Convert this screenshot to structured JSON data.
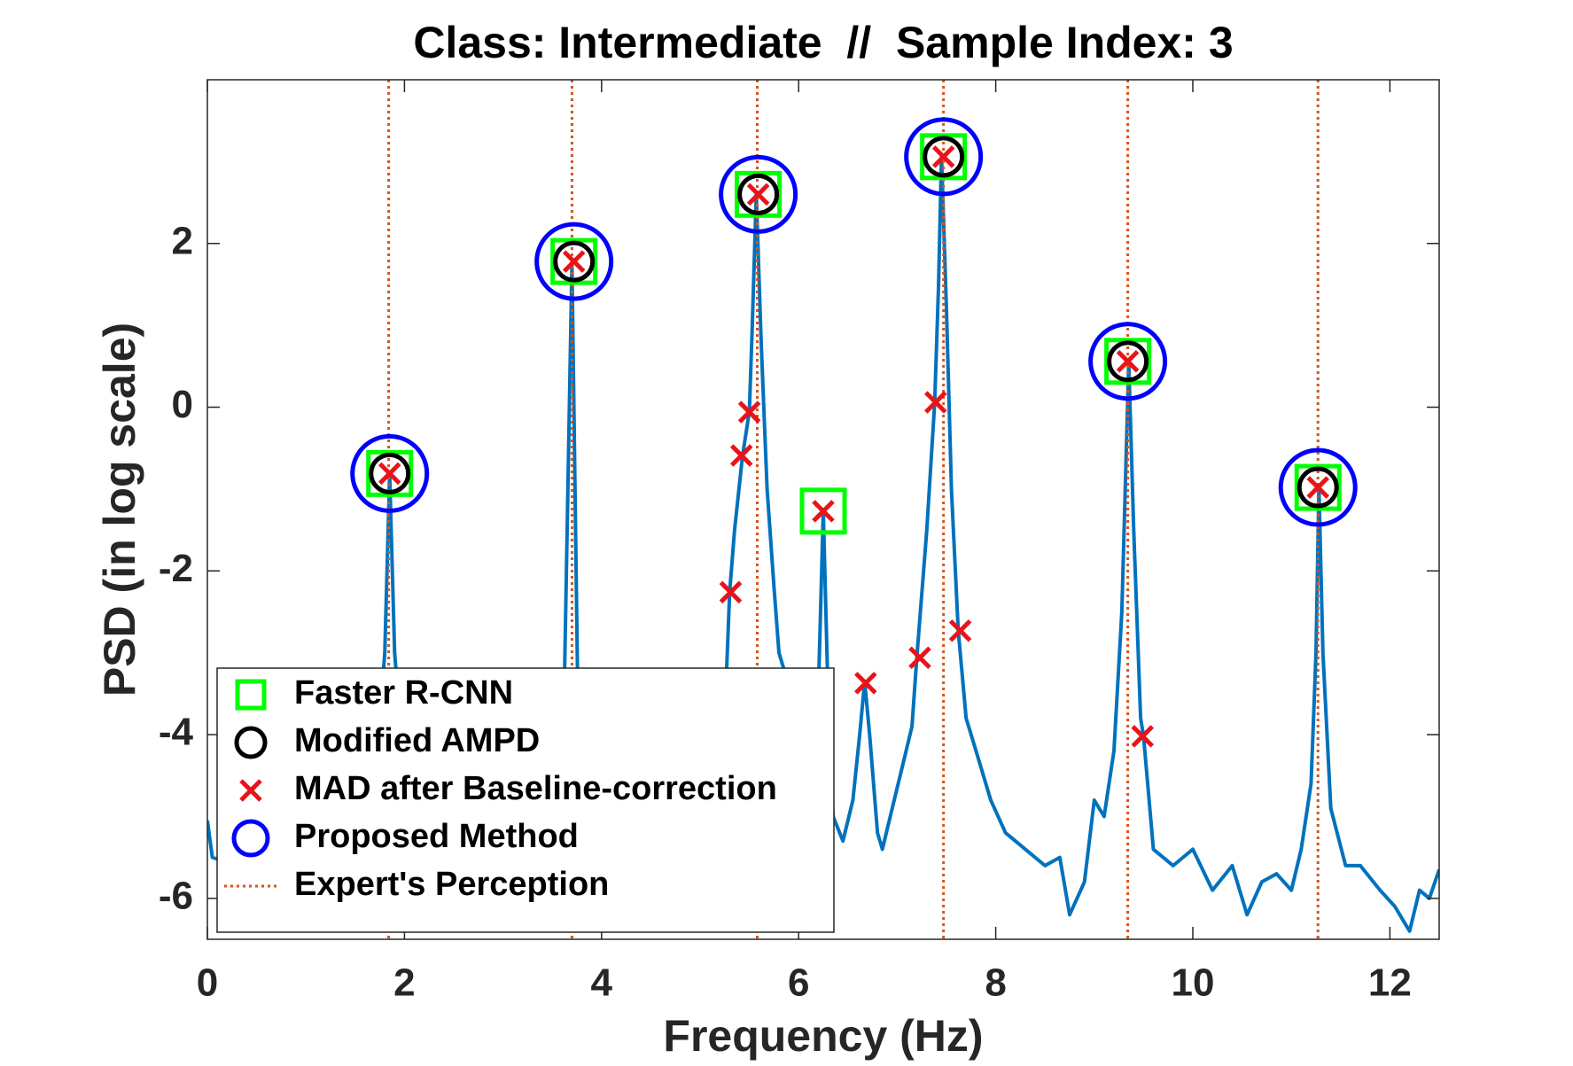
{
  "chart_data": {
    "type": "line",
    "title": "Class: Intermediate  //  Sample Index: 3",
    "xlabel": "Frequency (Hz)",
    "ylabel": "PSD (in log scale)",
    "xlim": [
      0,
      12.5
    ],
    "ylim": [
      -6.5,
      4
    ],
    "xticks": [
      0,
      2,
      4,
      6,
      8,
      10,
      12
    ],
    "yticks": [
      -6,
      -4,
      -2,
      0,
      2
    ],
    "legend": "lower left",
    "line": {
      "color": "#0072bd",
      "x": [
        0,
        0.05,
        0.3,
        0.6,
        0.9,
        1.2,
        1.5,
        1.7,
        1.8,
        1.85,
        1.9,
        2.0,
        2.3,
        2.6,
        2.9,
        3.2,
        3.5,
        3.62,
        3.7,
        3.76,
        3.85,
        4.2,
        4.6,
        5.0,
        5.25,
        5.3,
        5.35,
        5.43,
        5.5,
        5.53,
        5.57,
        5.62,
        5.68,
        5.75,
        5.8,
        5.9,
        5.95,
        6.0,
        6.1,
        6.2,
        6.25,
        6.3,
        6.35,
        6.45,
        6.55,
        6.62,
        6.67,
        6.72,
        6.8,
        6.85,
        6.95,
        7.05,
        7.15,
        7.2,
        7.3,
        7.38,
        7.42,
        7.45,
        7.5,
        7.55,
        7.62,
        7.7,
        7.8,
        7.95,
        8.1,
        8.3,
        8.5,
        8.65,
        8.75,
        8.9,
        9.0,
        9.1,
        9.2,
        9.28,
        9.35,
        9.4,
        9.47,
        9.5,
        9.6,
        9.8,
        10.0,
        10.2,
        10.4,
        10.55,
        10.7,
        10.85,
        11.0,
        11.1,
        11.2,
        11.25,
        11.28,
        11.32,
        11.4,
        11.55,
        11.7,
        11.9,
        12.05,
        12.2,
        12.3,
        12.4,
        12.5
      ],
      "values": [
        -5.05,
        -5.5,
        -5.6,
        -5.3,
        -5.7,
        -5.2,
        -5.0,
        -4.6,
        -3.0,
        -0.82,
        -3.0,
        -4.5,
        -5.3,
        -5.5,
        -5.4,
        -5.0,
        -4.4,
        -3.6,
        1.77,
        -3.6,
        -4.5,
        -5.2,
        -5.0,
        -4.6,
        -3.8,
        -2.25,
        -1.5,
        -0.6,
        -0.05,
        1.0,
        2.6,
        0.8,
        -1.0,
        -2.2,
        -3.0,
        -3.4,
        -4.2,
        -5.0,
        -4.8,
        -3.5,
        -1.27,
        -3.6,
        -5.0,
        -5.3,
        -4.8,
        -4.0,
        -3.35,
        -4.0,
        -5.2,
        -5.4,
        -4.9,
        -4.4,
        -3.9,
        -3.05,
        -1.5,
        0.05,
        1.5,
        3.07,
        1.2,
        -1.0,
        -2.73,
        -3.8,
        -4.2,
        -4.8,
        -5.2,
        -5.4,
        -5.6,
        -5.5,
        -6.2,
        -5.8,
        -4.8,
        -5.0,
        -4.2,
        -2.5,
        0.55,
        -1.5,
        -3.8,
        -4.02,
        -5.4,
        -5.6,
        -5.4,
        -5.9,
        -5.6,
        -6.2,
        -5.8,
        -5.7,
        -5.9,
        -5.4,
        -4.6,
        -3.0,
        -0.97,
        -3.0,
        -4.9,
        -5.6,
        -5.6,
        -5.9,
        -6.1,
        -6.4,
        -5.9,
        -6.0,
        -5.65
      ]
    },
    "series": [
      {
        "name": "Faster R-CNN",
        "color": "#00ff00",
        "marker": "square",
        "x": [
          1.85,
          3.72,
          5.59,
          6.25,
          7.47,
          9.34,
          11.27
        ],
        "values": [
          -0.81,
          1.78,
          2.6,
          -1.27,
          3.06,
          0.56,
          -0.98
        ]
      },
      {
        "name": "Modified AMPD",
        "color": "#000000",
        "marker": "circle",
        "x": [
          1.85,
          3.72,
          5.59,
          7.47,
          9.34,
          11.27
        ],
        "values": [
          -0.81,
          1.78,
          2.6,
          3.06,
          0.56,
          -0.98
        ]
      },
      {
        "name": "MAD after Baseline-correction",
        "color": "#e8141a",
        "marker": "x",
        "x": [
          1.85,
          3.72,
          5.31,
          5.42,
          5.5,
          5.59,
          6.25,
          6.68,
          7.23,
          7.39,
          7.47,
          7.64,
          9.34,
          9.49,
          11.27
        ],
        "values": [
          -0.81,
          1.78,
          -2.26,
          -0.59,
          -0.06,
          2.6,
          -1.27,
          -3.37,
          -3.06,
          0.06,
          3.06,
          -2.73,
          0.56,
          -4.02,
          -0.98
        ]
      },
      {
        "name": "Proposed Method",
        "color": "#0000ff",
        "marker": "circle-large",
        "x": [
          1.85,
          3.72,
          5.59,
          7.47,
          9.34,
          11.27
        ],
        "values": [
          -0.81,
          1.78,
          2.6,
          3.06,
          0.56,
          -0.98
        ]
      },
      {
        "name": "Expert's Perception",
        "color": "#d95319",
        "marker": "dotted-line",
        "x": [
          1.84,
          3.7,
          5.58,
          7.47,
          9.34,
          11.27
        ]
      }
    ]
  }
}
